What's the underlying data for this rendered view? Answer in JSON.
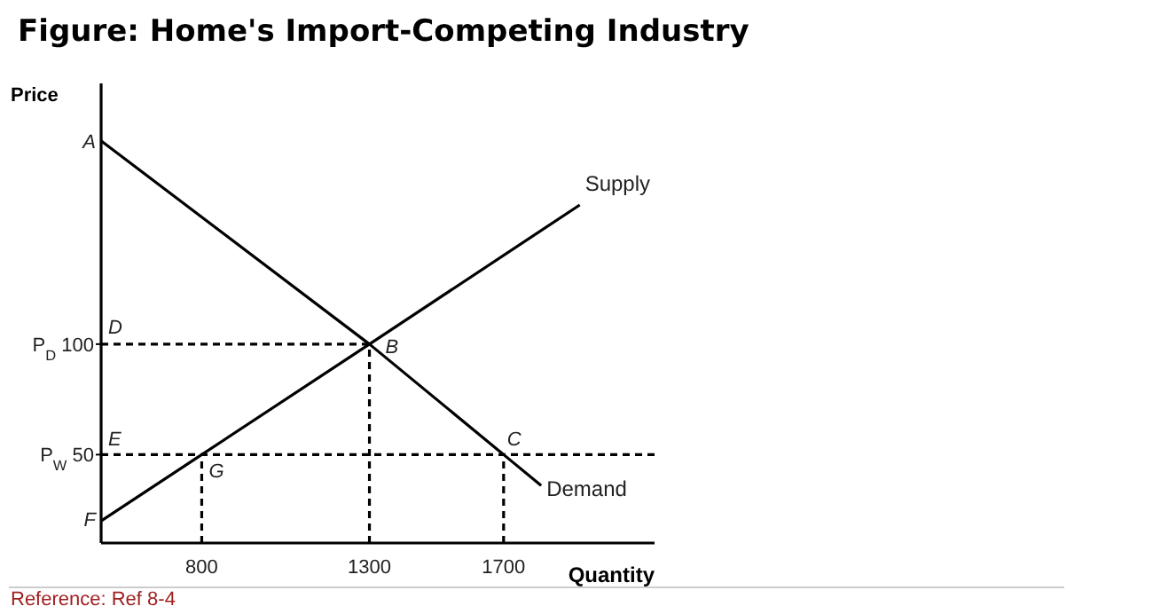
{
  "chart_data": {
    "type": "line",
    "title": "Figure: Home's Import-Competing Industry",
    "xlabel": "Quantity",
    "ylabel": "Price",
    "xlim": [
      500,
      2150
    ],
    "xticks": [
      800,
      1300,
      1700
    ],
    "ylim": [
      10,
      218
    ],
    "yticks": [
      {
        "value": 50,
        "label": "P$_{W}$ 50"
      },
      {
        "value": 100,
        "label": "P$_{D}$ 100"
      }
    ],
    "grid": false,
    "legend": false,
    "marker": "none",
    "series": [
      {
        "name": "Supply",
        "color": "#000000",
        "line_style": "solid",
        "x": [
          500,
          800,
          1300,
          1927
        ],
        "values": [
          20,
          50,
          100,
          163
        ]
      },
      {
        "name": "Demand",
        "color": "#000000",
        "line_style": "solid",
        "x": [
          500,
          1300,
          1700,
          1812
        ],
        "values": [
          192,
          100,
          50,
          36
        ]
      },
      {
        "color": "#000000",
        "line_style": "dashed",
        "x": [
          500,
          1300
        ],
        "values": [
          100,
          100
        ]
      },
      {
        "color": "#000000",
        "line_style": "dashed",
        "x": [
          500,
          2150
        ],
        "values": [
          50,
          50
        ]
      },
      {
        "color": "#000000",
        "line_style": "dashed",
        "x": [
          800,
          800
        ],
        "values": [
          10,
          50
        ]
      },
      {
        "color": "#000000",
        "line_style": "dashed",
        "x": [
          1300,
          1300
        ],
        "values": [
          10,
          100
        ]
      },
      {
        "color": "#000000",
        "line_style": "dashed",
        "x": [
          1700,
          1700
        ],
        "values": [
          10,
          50
        ]
      }
    ],
    "annotations": [
      {
        "text": "A",
        "x": 500,
        "y": 192
      },
      {
        "text": "D",
        "x": 500,
        "y": 100
      },
      {
        "text": "E",
        "x": 500,
        "y": 50
      },
      {
        "text": "F",
        "x": 500,
        "y": 21
      },
      {
        "text": "G",
        "x": 800,
        "y": 50
      },
      {
        "text": "B",
        "x": 1300,
        "y": 100
      },
      {
        "text": "C",
        "x": 1700,
        "y": 50
      },
      "Reference: Ref 8-4"
    ]
  }
}
